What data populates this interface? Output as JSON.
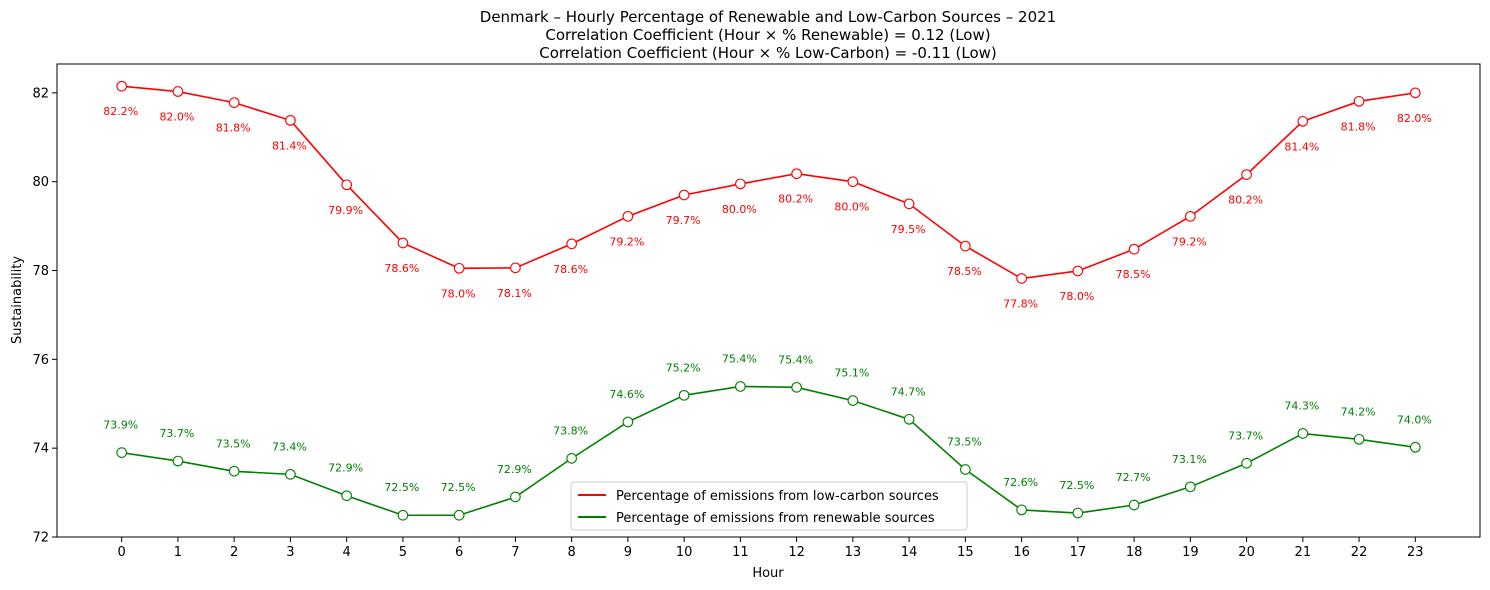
{
  "chart_data": {
    "type": "line",
    "title": [
      "Denmark – Hourly Percentage of Renewable and Low-Carbon Sources – 2021",
      "Correlation Coefficient (Hour × % Renewable) = 0.12 (Low)",
      "Correlation Coefficient (Hour × % Low-Carbon) = -0.11 (Low)"
    ],
    "xlabel": "Hour",
    "ylabel": "Sustainability",
    "x": [
      0,
      1,
      2,
      3,
      4,
      5,
      6,
      7,
      8,
      9,
      10,
      11,
      12,
      13,
      14,
      15,
      16,
      17,
      18,
      19,
      20,
      21,
      22,
      23
    ],
    "x_ticks": [
      "0",
      "1",
      "2",
      "3",
      "4",
      "5",
      "6",
      "7",
      "8",
      "9",
      "10",
      "11",
      "12",
      "13",
      "14",
      "15",
      "16",
      "17",
      "18",
      "19",
      "20",
      "21",
      "22",
      "23"
    ],
    "ylim": [
      72,
      82.65
    ],
    "xlim": [
      -1.15,
      24.15
    ],
    "y_ticks": [
      72,
      74,
      76,
      78,
      80,
      82
    ],
    "y_tick_labels": [
      "72",
      "74",
      "76",
      "78",
      "80",
      "82"
    ],
    "grid": false,
    "legend_position": "lower-center",
    "series": [
      {
        "name": "Percentage of emissions from low-carbon sources",
        "color": "#ff0000",
        "label_side": "below",
        "values": [
          82.15,
          82.03,
          81.78,
          81.38,
          79.93,
          78.62,
          78.05,
          78.06,
          78.6,
          79.22,
          79.7,
          79.95,
          80.18,
          80.0,
          79.5,
          78.55,
          77.82,
          77.99,
          78.48,
          79.22,
          80.16,
          81.36,
          81.81,
          82.0
        ],
        "labels": [
          "82.2%",
          "82.0%",
          "81.8%",
          "81.4%",
          "79.9%",
          "78.6%",
          "78.0%",
          "78.1%",
          "78.6%",
          "79.2%",
          "79.7%",
          "80.0%",
          "80.2%",
          "80.0%",
          "79.5%",
          "78.5%",
          "77.8%",
          "78.0%",
          "78.5%",
          "79.2%",
          "80.2%",
          "81.4%",
          "81.8%",
          "82.0%"
        ]
      },
      {
        "name": "Percentage of emissions from renewable sources",
        "color": "#008000",
        "label_side": "above",
        "values": [
          73.9,
          73.71,
          73.48,
          73.41,
          72.93,
          72.49,
          72.49,
          72.9,
          73.77,
          74.59,
          75.19,
          75.39,
          75.37,
          75.07,
          74.65,
          73.52,
          72.61,
          72.54,
          72.72,
          73.13,
          73.66,
          74.33,
          74.2,
          74.02
        ],
        "labels": [
          "73.9%",
          "73.7%",
          "73.5%",
          "73.4%",
          "72.9%",
          "72.5%",
          "72.5%",
          "72.9%",
          "73.8%",
          "74.6%",
          "75.2%",
          "75.4%",
          "75.4%",
          "75.1%",
          "74.7%",
          "73.5%",
          "72.6%",
          "72.5%",
          "72.7%",
          "73.1%",
          "73.7%",
          "74.3%",
          "74.2%",
          "74.0%"
        ]
      }
    ]
  }
}
